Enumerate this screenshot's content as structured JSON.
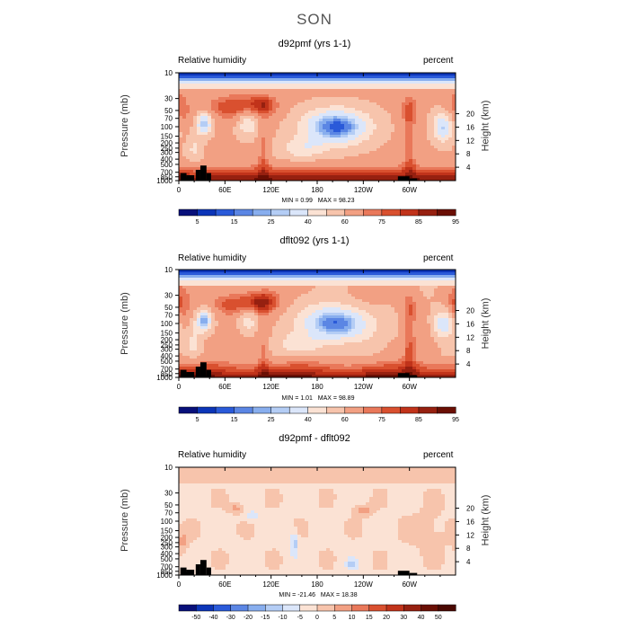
{
  "page": {
    "title": "SON"
  },
  "chart_data": [
    {
      "type": "heatmap",
      "title": "d92pmf (yrs 1-1)",
      "left_label": "Relative humidity",
      "right_label": "percent",
      "ylabel": "Pressure (mb)",
      "ylabel_right": "Height (km)",
      "xticks": [
        "0",
        "60E",
        "120E",
        "180",
        "120W",
        "60W"
      ],
      "yticks": [
        "10",
        "30",
        "50",
        "70",
        "100",
        "150",
        "200",
        "250",
        "300",
        "400",
        "500",
        "700",
        "850",
        "1000"
      ],
      "yticks_right": [
        "20",
        "16",
        "12",
        "8",
        "4"
      ],
      "stats": {
        "min_label": "MIN =",
        "min": "0.99",
        "max_label": "MAX =",
        "max": "98.23"
      },
      "colorbar_labels": [
        "5",
        "15",
        "25",
        "40",
        "60",
        "75",
        "85",
        "95"
      ],
      "colors": [
        "#08107a",
        "#0c35b8",
        "#2a5ad9",
        "#5b86e4",
        "#88aeee",
        "#b4cdf5",
        "#dbe6fa",
        "#fbe2d4",
        "#f7c4ac",
        "#f2a083",
        "#e9785a",
        "#d9502f",
        "#c1331a",
        "#962010",
        "#6a0f04"
      ],
      "field": "rh"
    },
    {
      "type": "heatmap",
      "title": "dflt092 (yrs 1-1)",
      "left_label": "Relative humidity",
      "right_label": "percent",
      "ylabel": "Pressure (mb)",
      "ylabel_right": "Height (km)",
      "xticks": [
        "0",
        "60E",
        "120E",
        "180",
        "120W",
        "60W"
      ],
      "yticks": [
        "10",
        "30",
        "50",
        "70",
        "100",
        "150",
        "200",
        "250",
        "300",
        "400",
        "500",
        "700",
        "850",
        "1000"
      ],
      "yticks_right": [
        "20",
        "16",
        "12",
        "8",
        "4"
      ],
      "stats": {
        "min_label": "MIN =",
        "min": "1.01",
        "max_label": "MAX =",
        "max": "98.89"
      },
      "colorbar_labels": [
        "5",
        "15",
        "25",
        "40",
        "60",
        "75",
        "85",
        "95"
      ],
      "colors": [
        "#08107a",
        "#0c35b8",
        "#2a5ad9",
        "#5b86e4",
        "#88aeee",
        "#b4cdf5",
        "#dbe6fa",
        "#fbe2d4",
        "#f7c4ac",
        "#f2a083",
        "#e9785a",
        "#d9502f",
        "#c1331a",
        "#962010",
        "#6a0f04"
      ],
      "field": "rh2"
    },
    {
      "type": "heatmap",
      "title": "d92pmf - dflt092",
      "left_label": "Relative humidity",
      "right_label": "percent",
      "ylabel": "Pressure (mb)",
      "ylabel_right": "Height (km)",
      "xticks": [
        "0",
        "60E",
        "120E",
        "180",
        "120W",
        "60W"
      ],
      "yticks": [
        "10",
        "30",
        "50",
        "70",
        "100",
        "150",
        "200",
        "250",
        "300",
        "400",
        "500",
        "700",
        "850",
        "1000"
      ],
      "yticks_right": [
        "20",
        "16",
        "12",
        "8",
        "4"
      ],
      "stats": {
        "min_label": "MIN =",
        "min": "-21.46",
        "max_label": "MAX =",
        "max": "18.38"
      },
      "colorbar_labels": [
        "-50",
        "-40",
        "-30",
        "-20",
        "-15",
        "-10",
        "-5",
        "0",
        "5",
        "10",
        "15",
        "20",
        "30",
        "40",
        "50"
      ],
      "colors": [
        "#08107a",
        "#0c35b8",
        "#2a5ad9",
        "#5b86e4",
        "#88aeee",
        "#b4cdf5",
        "#dbe6fa",
        "#fbe2d4",
        "#f7c4ac",
        "#f2a083",
        "#e9785a",
        "#d9502f",
        "#c1331a",
        "#962010",
        "#6a0f04",
        "#4a0802"
      ],
      "field": "diff"
    }
  ]
}
